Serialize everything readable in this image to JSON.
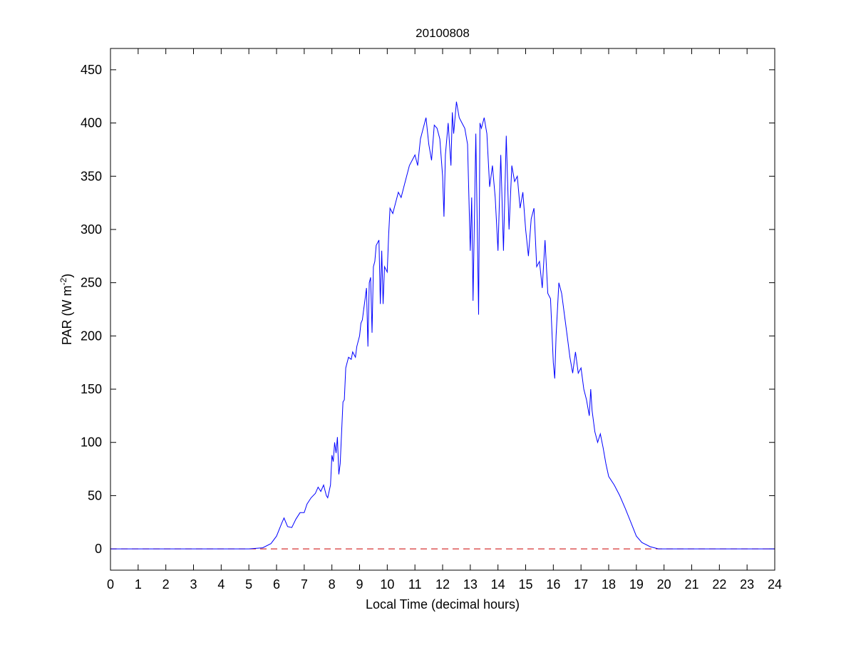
{
  "chart_data": {
    "type": "line",
    "title": "20100808",
    "xlabel": "Local Time (decimal hours)",
    "ylabel": "PAR (W m",
    "ylabel_sup": "-2",
    "ylabel_end": ")",
    "xlim": [
      0,
      24
    ],
    "ylim": [
      -20,
      470
    ],
    "xticks": [
      0,
      1,
      2,
      3,
      4,
      5,
      6,
      7,
      8,
      9,
      10,
      11,
      12,
      13,
      14,
      15,
      16,
      17,
      18,
      19,
      20,
      21,
      22,
      23,
      24
    ],
    "yticks": [
      0,
      50,
      100,
      150,
      200,
      250,
      300,
      350,
      400,
      450
    ],
    "grid": false,
    "series_color": "#0000ff",
    "reference_line": {
      "y": 0,
      "color": "#cc0000",
      "style": "dashed"
    },
    "series": [
      {
        "x": [
          0,
          5,
          5.5,
          5.8,
          6.0,
          6.2,
          6.27,
          6.4,
          6.55,
          6.7,
          6.85,
          7.0,
          7.1,
          7.25,
          7.4,
          7.5,
          7.6,
          7.7,
          7.8,
          7.85,
          7.95,
          8.0,
          8.05,
          8.1,
          8.15,
          8.2,
          8.25,
          8.3,
          8.4,
          8.45,
          8.5,
          8.6,
          8.7,
          8.75,
          8.85,
          8.9,
          9.0,
          9.05,
          9.1,
          9.15,
          9.2,
          9.25,
          9.3,
          9.35,
          9.4,
          9.45,
          9.5,
          9.55,
          9.6,
          9.7,
          9.75,
          9.8,
          9.85,
          9.9,
          10.0,
          10.05,
          10.1,
          10.2,
          10.3,
          10.4,
          10.5,
          10.6,
          10.7,
          10.8,
          10.9,
          11.0,
          11.1,
          11.2,
          11.3,
          11.4,
          11.5,
          11.6,
          11.7,
          11.8,
          11.9,
          12.0,
          12.05,
          12.1,
          12.2,
          12.3,
          12.35,
          12.4,
          12.5,
          12.6,
          12.7,
          12.8,
          12.9,
          13.0,
          13.05,
          13.1,
          13.2,
          13.3,
          13.35,
          13.4,
          13.5,
          13.6,
          13.7,
          13.8,
          13.9,
          14.0,
          14.1,
          14.2,
          14.3,
          14.4,
          14.5,
          14.6,
          14.7,
          14.8,
          14.9,
          15.0,
          15.1,
          15.2,
          15.3,
          15.4,
          15.5,
          15.6,
          15.7,
          15.8,
          15.9,
          16.0,
          16.05,
          16.1,
          16.2,
          16.3,
          16.4,
          16.5,
          16.6,
          16.7,
          16.8,
          16.9,
          17.0,
          17.1,
          17.2,
          17.3,
          17.35,
          17.4,
          17.5,
          17.6,
          17.7,
          17.8,
          17.9,
          18.0,
          18.2,
          18.4,
          18.6,
          18.8,
          19.0,
          19.2,
          19.5,
          19.8,
          24
        ],
        "y": [
          0,
          0,
          1,
          5,
          12,
          25,
          29,
          21,
          20,
          28,
          34,
          34,
          42,
          48,
          52,
          58,
          54,
          60,
          50,
          48,
          60,
          88,
          82,
          100,
          90,
          105,
          70,
          80,
          138,
          140,
          170,
          180,
          178,
          185,
          180,
          190,
          200,
          212,
          215,
          225,
          235,
          245,
          190,
          250,
          255,
          203,
          265,
          270,
          285,
          290,
          230,
          280,
          230,
          265,
          260,
          295,
          320,
          315,
          325,
          335,
          330,
          340,
          350,
          360,
          365,
          370,
          360,
          385,
          395,
          405,
          380,
          365,
          398,
          395,
          385,
          350,
          312,
          370,
          400,
          360,
          410,
          390,
          420,
          405,
          400,
          395,
          380,
          280,
          330,
          233,
          390,
          220,
          400,
          395,
          405,
          390,
          340,
          360,
          330,
          280,
          370,
          280,
          388,
          300,
          360,
          345,
          350,
          320,
          335,
          300,
          275,
          310,
          320,
          265,
          270,
          245,
          290,
          240,
          235,
          175,
          160,
          200,
          250,
          240,
          220,
          200,
          180,
          165,
          185,
          165,
          170,
          150,
          140,
          125,
          150,
          130,
          110,
          100,
          108,
          95,
          80,
          68,
          60,
          50,
          38,
          25,
          12,
          6,
          2,
          0,
          0
        ]
      }
    ]
  }
}
